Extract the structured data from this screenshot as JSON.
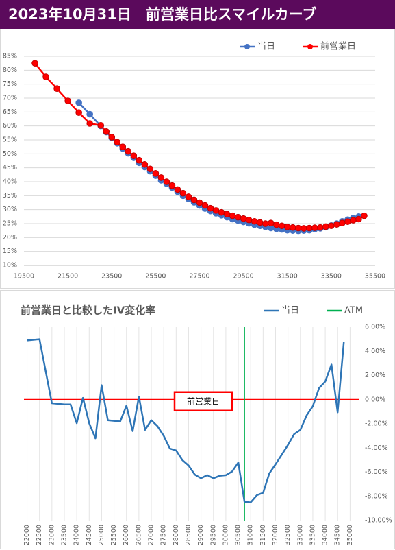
{
  "title": "2023年10月31日　前営業日比スマイルカーブ",
  "chart_data": [
    {
      "type": "line",
      "markers": true,
      "grid": "y",
      "legend": "top-right",
      "xlim": [
        19500,
        35500
      ],
      "xticks": [
        19500,
        21500,
        23500,
        25500,
        27500,
        29500,
        31500,
        33500,
        35500
      ],
      "ylim": [
        10,
        85
      ],
      "yticks": [
        {
          "value": 10,
          "label": "10%"
        },
        {
          "value": 15,
          "label": "15%"
        },
        {
          "value": 20,
          "label": "20%"
        },
        {
          "value": 25,
          "label": "25%"
        },
        {
          "value": 30,
          "label": "30%"
        },
        {
          "value": 35,
          "label": "35%"
        },
        {
          "value": 40,
          "label": "40%"
        },
        {
          "value": 45,
          "label": "45%"
        },
        {
          "value": 50,
          "label": "50%"
        },
        {
          "value": 55,
          "label": "55%"
        },
        {
          "value": 60,
          "label": "60%"
        },
        {
          "value": 65,
          "label": "65%"
        },
        {
          "value": 70,
          "label": "70%"
        },
        {
          "value": 75,
          "label": "75%"
        },
        {
          "value": 80,
          "label": "80%"
        },
        {
          "value": 85,
          "label": "85%"
        }
      ],
      "series": [
        {
          "name": "当日",
          "color": "#4472c4",
          "x": [
            22000,
            22500,
            23000,
            23250,
            23500,
            23750,
            24000,
            24250,
            24500,
            24750,
            25000,
            25250,
            25500,
            25750,
            26000,
            26250,
            26500,
            26750,
            27000,
            27250,
            27500,
            27750,
            28000,
            28250,
            28500,
            28750,
            29000,
            29250,
            29500,
            29750,
            30000,
            30250,
            30500,
            30750,
            31000,
            31250,
            31500,
            31750,
            32000,
            32250,
            32500,
            32750,
            33000,
            33250,
            33500,
            33750,
            34000,
            34250,
            34500,
            34750
          ],
          "values": [
            68.3,
            64.2,
            60.0,
            57.8,
            55.7,
            53.8,
            51.9,
            50.2,
            48.6,
            46.8,
            45.3,
            43.8,
            42.2,
            40.5,
            39.3,
            37.9,
            36.4,
            35.0,
            33.8,
            32.6,
            31.5,
            30.4,
            29.5,
            28.7,
            28.0,
            27.3,
            26.6,
            26.1,
            25.6,
            25.1,
            24.6,
            24.2,
            23.8,
            23.4,
            23.1,
            22.9,
            22.6,
            22.5,
            22.4,
            22.5,
            22.6,
            23.0,
            23.3,
            23.7,
            24.3,
            25.0,
            25.8,
            26.4,
            27.0,
            27.5
          ]
        },
        {
          "name": "前営業日",
          "color": "#ff0000",
          "x": [
            20000,
            20500,
            21000,
            21500,
            22000,
            22500,
            23000,
            23250,
            23500,
            23750,
            24000,
            24250,
            24500,
            24750,
            25000,
            25250,
            25500,
            25750,
            26000,
            26250,
            26500,
            26750,
            27000,
            27250,
            27500,
            27750,
            28000,
            28250,
            28500,
            28750,
            29000,
            29250,
            29500,
            29750,
            30000,
            30250,
            30500,
            30750,
            31000,
            31250,
            31500,
            31750,
            32000,
            32250,
            32500,
            32750,
            33000,
            33250,
            33500,
            33750,
            34000,
            34250,
            34500,
            34750,
            35000
          ],
          "values": [
            82.5,
            77.6,
            73.4,
            69.0,
            64.8,
            60.9,
            60.2,
            58.0,
            56.0,
            54.2,
            52.5,
            50.9,
            49.3,
            47.7,
            46.2,
            44.6,
            43.0,
            41.5,
            40.0,
            38.6,
            37.2,
            35.9,
            34.6,
            33.5,
            32.5,
            31.5,
            30.5,
            29.7,
            29.0,
            28.4,
            27.8,
            27.3,
            26.8,
            26.3,
            25.8,
            25.4,
            25.0,
            25.2,
            24.6,
            24.2,
            23.8,
            23.6,
            23.4,
            23.3,
            23.4,
            23.5,
            23.6,
            23.9,
            24.2,
            24.7,
            25.2,
            25.7,
            26.2,
            26.6,
            27.8
          ]
        }
      ]
    },
    {
      "type": "line",
      "markers": false,
      "grid": "x",
      "legend": "top-right",
      "yaxis_position": "right",
      "title": "前営業日と比較したIV変化率",
      "xlim": [
        21875,
        35375
      ],
      "xticks": [
        22000,
        22500,
        23000,
        23500,
        24000,
        24500,
        25000,
        25500,
        26000,
        26500,
        27000,
        27500,
        28000,
        28500,
        29000,
        29500,
        30000,
        30500,
        31000,
        31500,
        32000,
        32500,
        33000,
        33500,
        34000,
        34500,
        35000
      ],
      "ylim": [
        -10,
        6
      ],
      "yticks": [
        {
          "value": -10,
          "label": "-10.00%"
        },
        {
          "value": -8,
          "label": "-8.00%"
        },
        {
          "value": -6,
          "label": "-6.00%"
        },
        {
          "value": -4,
          "label": "-4.00%"
        },
        {
          "value": -2,
          "label": "-2.00%"
        },
        {
          "value": 0,
          "label": "0.00%"
        },
        {
          "value": 2,
          "label": "2.00%"
        },
        {
          "value": 4,
          "label": "4.00%"
        },
        {
          "value": 6,
          "label": "6.00%"
        }
      ],
      "series": [
        {
          "name": "当日",
          "color": "#2e75b6",
          "x": [
            22000,
            22500,
            23000,
            23250,
            23500,
            23750,
            24000,
            24250,
            24500,
            24750,
            25000,
            25250,
            25500,
            25750,
            26000,
            26250,
            26500,
            26750,
            27000,
            27250,
            27500,
            27750,
            28000,
            28250,
            28500,
            28750,
            29000,
            29250,
            29500,
            29750,
            30000,
            30250,
            30500,
            30750,
            31000,
            31250,
            31500,
            31750,
            32000,
            32250,
            32500,
            32750,
            33000,
            33250,
            33500,
            33750,
            34000,
            34250,
            34500,
            34750
          ],
          "values": [
            4.9,
            5.0,
            -0.3,
            -0.35,
            -0.4,
            -0.4,
            -1.95,
            0.15,
            -1.95,
            -3.2,
            1.2,
            -1.7,
            -1.75,
            -1.8,
            -0.5,
            -2.6,
            0.25,
            -2.5,
            -1.7,
            -2.2,
            -3.0,
            -4.05,
            -4.2,
            -5.0,
            -5.45,
            -6.2,
            -6.5,
            -6.25,
            -6.5,
            -6.3,
            -6.25,
            -5.95,
            -5.2,
            -8.45,
            -8.5,
            -7.9,
            -7.7,
            -6.1,
            -5.35,
            -4.55,
            -3.75,
            -2.85,
            -2.5,
            -1.3,
            -0.55,
            0.95,
            1.5,
            2.9,
            -1.05,
            4.8
          ]
        }
      ],
      "vlines": [
        {
          "name": "ATM",
          "x": 30750,
          "color": "#00b050"
        }
      ],
      "reference_line": {
        "value": 0,
        "label": "前営業日",
        "color": "#ff0000"
      }
    }
  ]
}
